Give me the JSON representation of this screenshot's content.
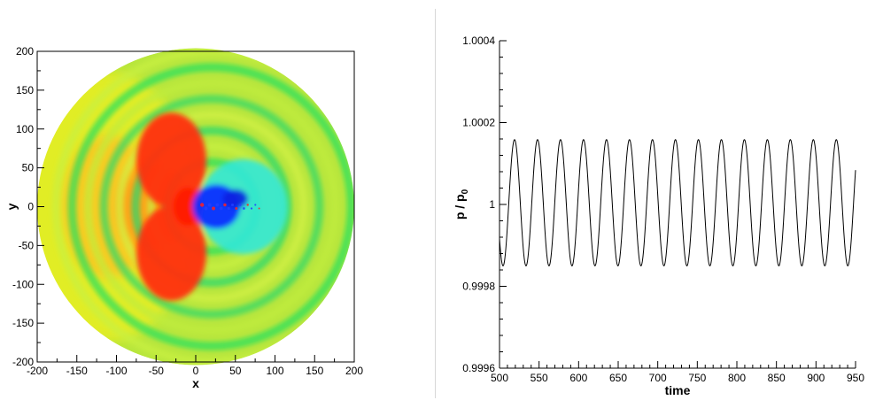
{
  "chart_data": [
    {
      "type": "heatmap",
      "title": "",
      "xlabel": "x",
      "ylabel": "y",
      "xlim": [
        -200,
        200
      ],
      "ylim": [
        -200,
        200
      ],
      "xticks": [
        -200,
        -150,
        -100,
        -50,
        0,
        50,
        100,
        150,
        200
      ],
      "yticks": [
        -200,
        -150,
        -100,
        -50,
        0,
        50,
        100,
        150,
        200
      ],
      "domain_radius": 200,
      "colormap": [
        "#0000ff",
        "#00ffff",
        "#00ff00",
        "#ffff00",
        "#ff0000"
      ],
      "background_color": "#b8e63c",
      "source_center": [
        0,
        0
      ]
    },
    {
      "type": "line",
      "title": "",
      "xlabel": "time",
      "ylabel": "p / p0",
      "ylabel_parts": {
        "main": "p / p",
        "sub": "0"
      },
      "xlim": [
        500,
        950
      ],
      "ylim": [
        0.9996,
        1.0004
      ],
      "xticks": [
        500,
        550,
        600,
        650,
        700,
        750,
        800,
        850,
        900,
        950
      ],
      "yticks": [
        0.9996,
        0.9998,
        1,
        1.0002,
        1.0004
      ],
      "yticklabels": [
        "0.9996",
        "0.9998",
        "1",
        "1.0002",
        "1.0004"
      ],
      "series": [
        {
          "start": 500,
          "end": 950,
          "mean": 1.0000042,
          "amplitude": 0.0001542,
          "period": 29.05,
          "first_peak": 519
        }
      ]
    }
  ]
}
